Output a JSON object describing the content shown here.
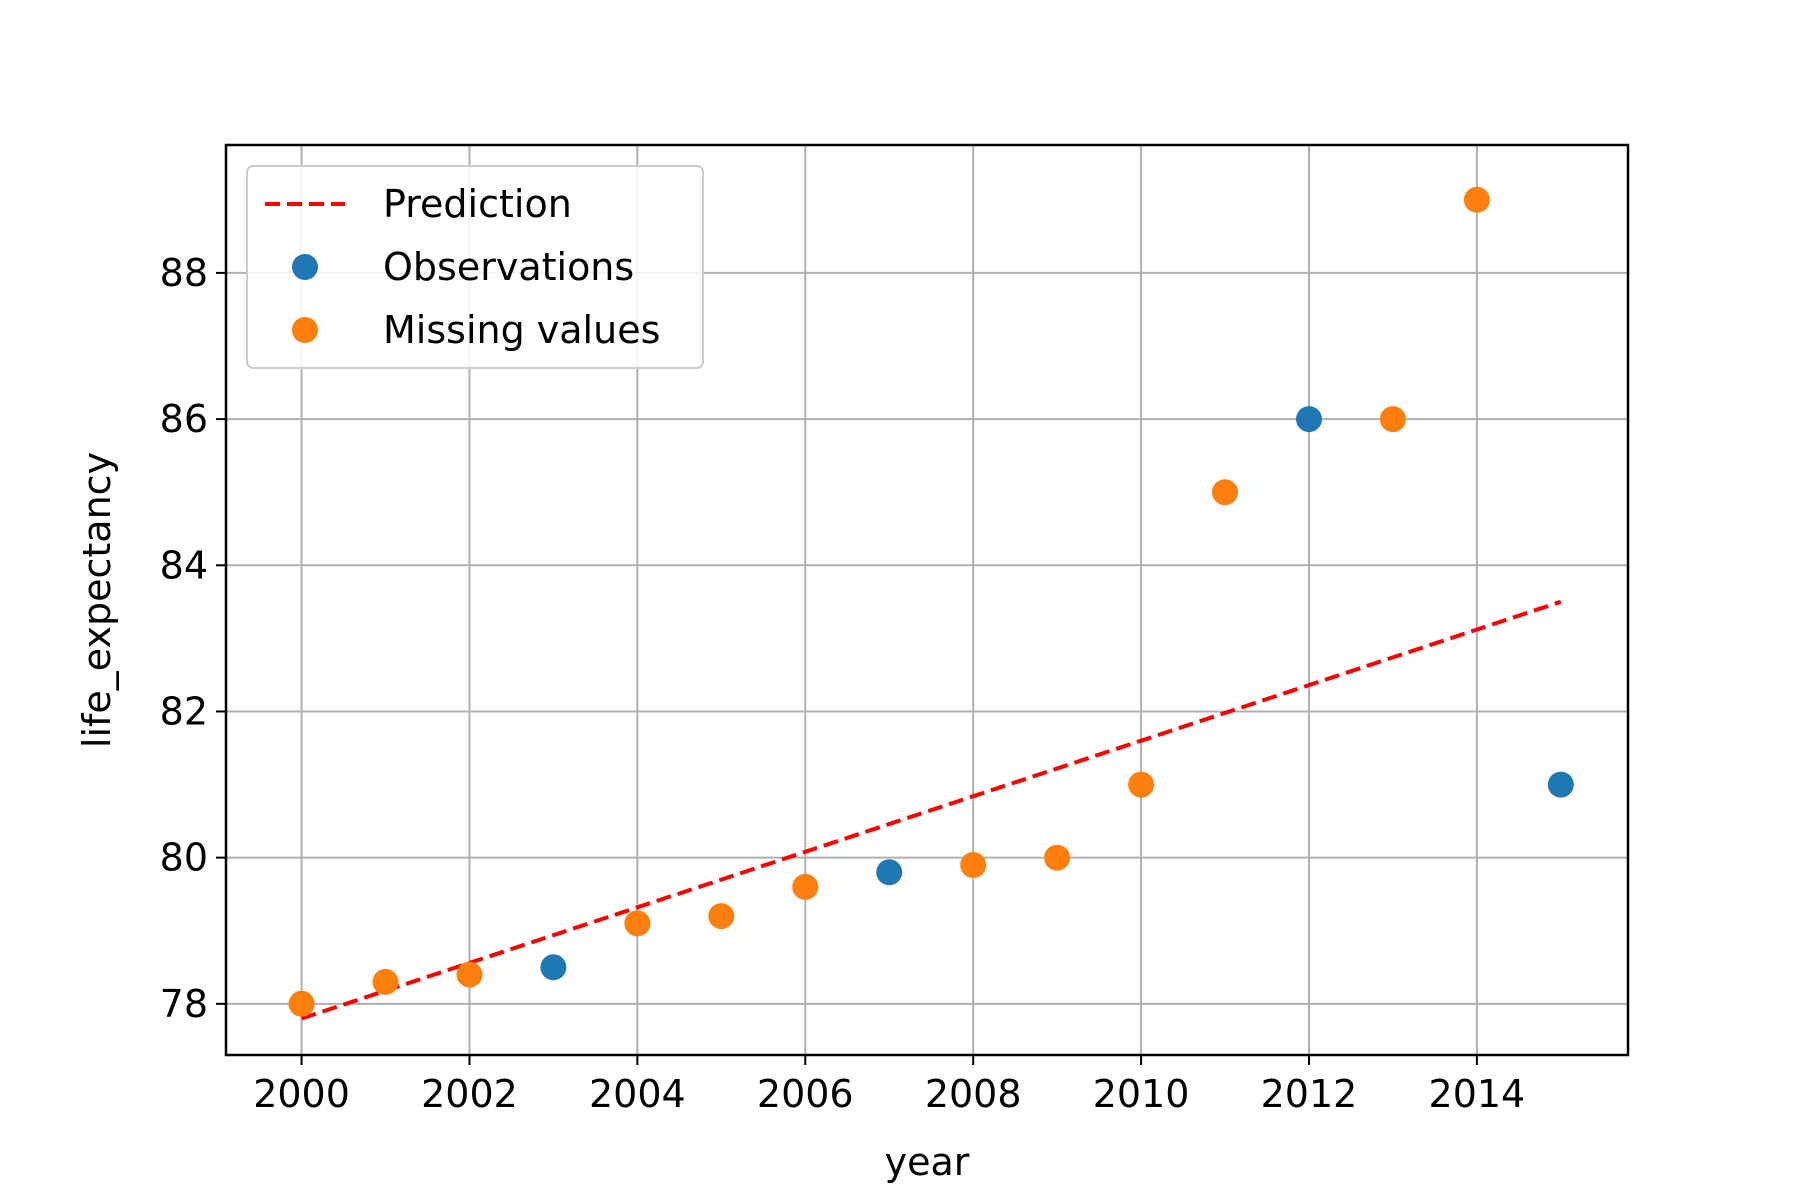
{
  "chart_data": {
    "type": "scatter",
    "title": "",
    "xlabel": "year",
    "ylabel": "life_expectancy",
    "xlim": [
      1999.1,
      2015.8
    ],
    "ylim": [
      77.3,
      89.75
    ],
    "x_ticks": [
      2000,
      2002,
      2004,
      2006,
      2008,
      2010,
      2012,
      2014
    ],
    "y_ticks": [
      78,
      80,
      82,
      84,
      86,
      88
    ],
    "grid": true,
    "legend_position": "upper-left",
    "series": [
      {
        "name": "Prediction",
        "kind": "line",
        "style": "dashed",
        "color": "#ff0000",
        "points": [
          [
            2000,
            77.8
          ],
          [
            2015,
            83.5
          ]
        ]
      },
      {
        "name": "Observations",
        "kind": "scatter",
        "color": "#1f77b4",
        "points": [
          [
            2003,
            78.5
          ],
          [
            2007,
            79.8
          ],
          [
            2012,
            86.0
          ],
          [
            2015,
            81.0
          ]
        ]
      },
      {
        "name": "Missing values",
        "kind": "scatter",
        "color": "#ff7f0e",
        "points": [
          [
            2000,
            78.0
          ],
          [
            2001,
            78.3
          ],
          [
            2002,
            78.4
          ],
          [
            2004,
            79.1
          ],
          [
            2005,
            79.2
          ],
          [
            2006,
            79.6
          ],
          [
            2008,
            79.9
          ],
          [
            2009,
            80.0
          ],
          [
            2010,
            81.0
          ],
          [
            2011,
            85.0
          ],
          [
            2013,
            86.0
          ],
          [
            2014,
            89.0
          ]
        ]
      }
    ]
  }
}
